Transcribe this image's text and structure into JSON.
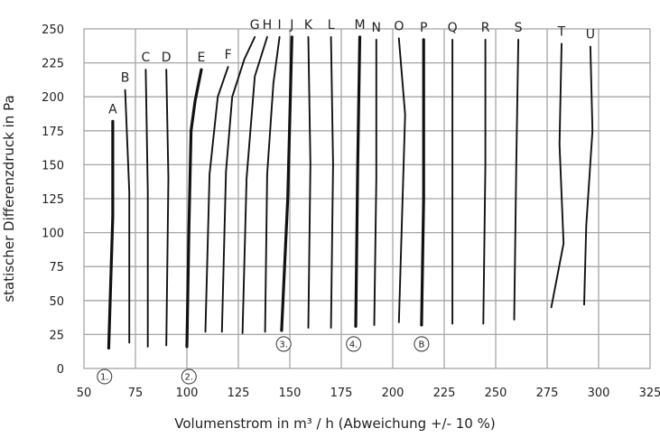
{
  "chart_data": {
    "type": "line",
    "title": "",
    "xlabel": "Volumenstrom in m³ / h (Abweichung +/- 10 %)",
    "ylabel": "statischer Differenzdruck in Pa",
    "xlim": [
      50,
      325
    ],
    "ylim": [
      0,
      250
    ],
    "x_ticks": [
      50,
      75,
      100,
      125,
      150,
      175,
      200,
      225,
      250,
      275,
      300,
      325
    ],
    "y_ticks": [
      0,
      25,
      50,
      75,
      100,
      125,
      150,
      175,
      200,
      225,
      250
    ],
    "grid": true,
    "legend": "none",
    "colors": {
      "line": "#111111",
      "grid": "#a6a6a6",
      "text": "#222222"
    },
    "series": [
      {
        "name": "A",
        "points": [
          [
            62,
            15
          ],
          [
            64,
            112
          ],
          [
            64,
            182
          ]
        ]
      },
      {
        "name": "B",
        "points": [
          [
            72,
            19
          ],
          [
            72,
            130
          ],
          [
            70,
            205
          ]
        ]
      },
      {
        "name": "C",
        "points": [
          [
            81,
            16
          ],
          [
            81,
            130
          ],
          [
            80,
            220
          ]
        ]
      },
      {
        "name": "D",
        "points": [
          [
            90,
            17
          ],
          [
            91,
            140
          ],
          [
            90,
            220
          ]
        ]
      },
      {
        "name": "E",
        "points": [
          [
            100,
            16
          ],
          [
            101,
            105
          ],
          [
            102,
            175
          ],
          [
            104,
            197
          ],
          [
            107,
            220
          ]
        ]
      },
      {
        "name": "F",
        "points": [
          [
            109,
            27
          ],
          [
            111,
            143
          ],
          [
            115,
            200
          ],
          [
            120,
            222
          ]
        ]
      },
      {
        "name": "G",
        "points": [
          [
            117,
            27
          ],
          [
            119,
            145
          ],
          [
            122,
            200
          ],
          [
            128,
            228
          ],
          [
            133,
            244
          ]
        ]
      },
      {
        "name": "H",
        "points": [
          [
            127,
            26
          ],
          [
            129,
            140
          ],
          [
            133,
            215
          ],
          [
            139,
            244
          ]
        ]
      },
      {
        "name": "I",
        "points": [
          [
            138,
            27
          ],
          [
            139,
            143
          ],
          [
            142,
            210
          ],
          [
            145,
            244
          ]
        ]
      },
      {
        "name": "J",
        "points": [
          [
            146,
            28
          ],
          [
            149,
            125
          ],
          [
            151,
            244
          ]
        ]
      },
      {
        "name": "K",
        "points": [
          [
            159,
            30
          ],
          [
            160,
            150
          ],
          [
            159,
            244
          ]
        ]
      },
      {
        "name": "L",
        "points": [
          [
            170,
            30
          ],
          [
            171,
            150
          ],
          [
            170,
            244
          ]
        ]
      },
      {
        "name": "M",
        "points": [
          [
            182,
            31
          ],
          [
            183,
            150
          ],
          [
            184,
            244
          ]
        ]
      },
      {
        "name": "N",
        "points": [
          [
            191,
            32
          ],
          [
            192,
            140
          ],
          [
            192,
            242
          ]
        ]
      },
      {
        "name": "O",
        "points": [
          [
            203,
            34
          ],
          [
            206,
            187
          ],
          [
            203,
            243
          ]
        ]
      },
      {
        "name": "P",
        "points": [
          [
            214,
            32
          ],
          [
            215,
            125
          ],
          [
            215,
            242
          ]
        ]
      },
      {
        "name": "Q",
        "points": [
          [
            229,
            33
          ],
          [
            229,
            150
          ],
          [
            229,
            242
          ]
        ]
      },
      {
        "name": "R",
        "points": [
          [
            244,
            33
          ],
          [
            245,
            150
          ],
          [
            245,
            242
          ]
        ]
      },
      {
        "name": "S",
        "points": [
          [
            259,
            36
          ],
          [
            260,
            150
          ],
          [
            261,
            242
          ]
        ]
      },
      {
        "name": "T",
        "points": [
          [
            277,
            45
          ],
          [
            283,
            92
          ],
          [
            281,
            165
          ],
          [
            282,
            239
          ]
        ]
      },
      {
        "name": "U",
        "points": [
          [
            293,
            47
          ],
          [
            294,
            105
          ],
          [
            297,
            175
          ],
          [
            296,
            237
          ]
        ]
      }
    ],
    "bold_series": [
      "A",
      "E",
      "J",
      "M",
      "P"
    ],
    "markers": [
      {
        "label": "1.",
        "x": 60,
        "y": -6
      },
      {
        "label": "2.",
        "x": 101,
        "y": -6
      },
      {
        "label": "3.",
        "x": 147,
        "y": 18
      },
      {
        "label": "4.",
        "x": 181,
        "y": 18
      },
      {
        "label": "B",
        "x": 214,
        "y": 18
      }
    ]
  }
}
